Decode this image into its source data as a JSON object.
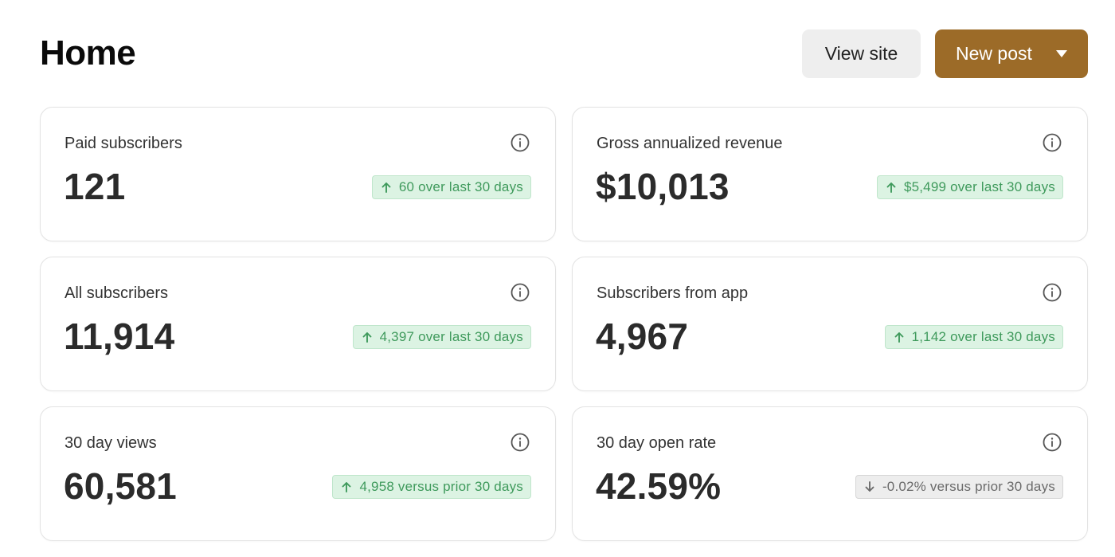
{
  "header": {
    "title": "Home",
    "view_site_label": "View site",
    "new_post_label": "New post"
  },
  "colors": {
    "accent": "#9c6b28",
    "positive": "#3f9a5c",
    "neutral": "#6b6b6b"
  },
  "cards": [
    {
      "label": "Paid subscribers",
      "value": "121",
      "trend": "up",
      "trend_icon": "arrow-up-icon",
      "change": "60 over last 30 days"
    },
    {
      "label": "Gross annualized revenue",
      "value": "$10,013",
      "trend": "up",
      "trend_icon": "arrow-up-icon",
      "change": "$5,499 over last 30 days"
    },
    {
      "label": "All subscribers",
      "value": "11,914",
      "trend": "up",
      "trend_icon": "arrow-up-icon",
      "change": "4,397 over last 30 days"
    },
    {
      "label": "Subscribers from app",
      "value": "4,967",
      "trend": "up",
      "trend_icon": "arrow-up-icon",
      "change": "1,142 over last 30 days"
    },
    {
      "label": "30 day views",
      "value": "60,581",
      "trend": "up",
      "trend_icon": "arrow-up-icon",
      "change": "4,958 versus prior 30 days"
    },
    {
      "label": "30 day open rate",
      "value": "42.59%",
      "trend": "down",
      "trend_icon": "arrow-down-icon",
      "change": "-0.02% versus prior 30 days"
    }
  ]
}
